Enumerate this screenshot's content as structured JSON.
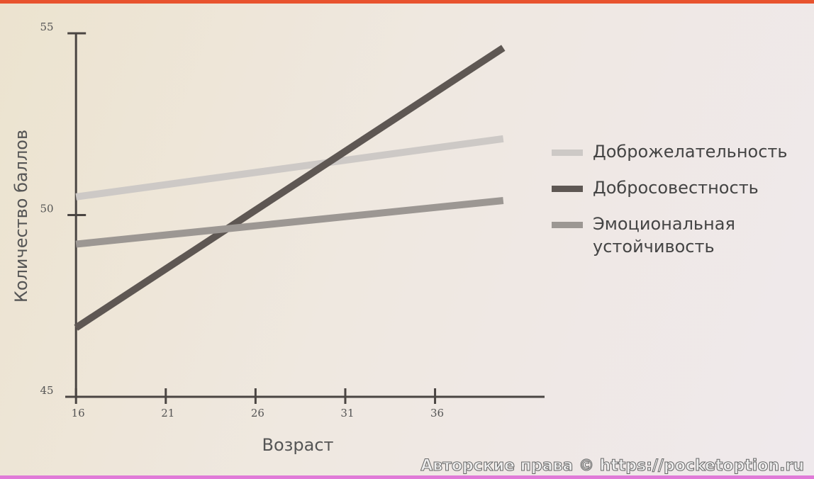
{
  "chart_data": {
    "type": "line",
    "x_label": "Возраст",
    "y_label": "Количество баллов",
    "x": [
      16,
      39.8
    ],
    "series": [
      {
        "name": "Доброжелательность",
        "color": "#cdc9c6",
        "values": [
          50.5,
          52.1
        ]
      },
      {
        "name": "Добросовестность",
        "color": "#5e5753",
        "values": [
          46.9,
          54.6
        ]
      },
      {
        "name": "Эмоциональная устойчивость",
        "color": "#9c9793",
        "values": [
          49.2,
          50.4
        ]
      }
    ],
    "xlim": [
      15.4,
      42.1
    ],
    "xticks": [
      16,
      21,
      26,
      31,
      36
    ],
    "ylim": [
      45,
      55
    ],
    "yticks": [
      45,
      50,
      55
    ],
    "legend": "right"
  },
  "watermark": "Авторские права © https://pocketoption.ru"
}
